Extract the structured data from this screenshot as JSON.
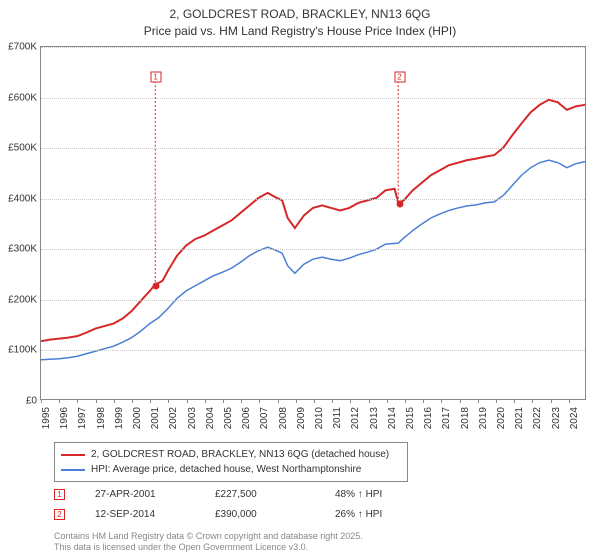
{
  "title": {
    "line1": "2, GOLDCREST ROAD, BRACKLEY, NN13 6QG",
    "line2": "Price paid vs. HM Land Registry's House Price Index (HPI)"
  },
  "chart": {
    "type": "line",
    "background_color": "#ffffff",
    "grid_color": "#cccccc",
    "axis_color": "#888888",
    "label_fontsize": 10,
    "ylim": [
      0,
      700000
    ],
    "ytick_step": 100000,
    "yticks": [
      "£0",
      "£100K",
      "£200K",
      "£300K",
      "£400K",
      "£500K",
      "£600K",
      "£700K"
    ],
    "xlim": [
      1995,
      2025
    ],
    "xticks": [
      1995,
      1996,
      1997,
      1998,
      1999,
      2000,
      2001,
      2002,
      2003,
      2004,
      2005,
      2006,
      2007,
      2008,
      2009,
      2010,
      2011,
      2012,
      2013,
      2014,
      2015,
      2016,
      2017,
      2018,
      2019,
      2020,
      2021,
      2022,
      2023,
      2024
    ],
    "series": [
      {
        "id": "price_paid",
        "color": "#d62728",
        "line_width": 2,
        "label": "2, GOLDCREST ROAD, BRACKLEY, NN13 6QG (detached house)",
        "points": [
          [
            1995,
            115000
          ],
          [
            1995.5,
            118000
          ],
          [
            1996,
            120000
          ],
          [
            1996.5,
            122000
          ],
          [
            1997,
            125000
          ],
          [
            1997.5,
            132000
          ],
          [
            1998,
            140000
          ],
          [
            1998.5,
            145000
          ],
          [
            1999,
            150000
          ],
          [
            1999.5,
            160000
          ],
          [
            2000,
            175000
          ],
          [
            2000.5,
            195000
          ],
          [
            2001,
            215000
          ],
          [
            2001.3,
            227500
          ],
          [
            2001.7,
            235000
          ],
          [
            2002,
            255000
          ],
          [
            2002.5,
            285000
          ],
          [
            2003,
            305000
          ],
          [
            2003.5,
            318000
          ],
          [
            2004,
            325000
          ],
          [
            2004.5,
            335000
          ],
          [
            2005,
            345000
          ],
          [
            2005.5,
            355000
          ],
          [
            2006,
            370000
          ],
          [
            2006.5,
            385000
          ],
          [
            2007,
            400000
          ],
          [
            2007.5,
            410000
          ],
          [
            2008,
            400000
          ],
          [
            2008.3,
            395000
          ],
          [
            2008.6,
            360000
          ],
          [
            2009,
            340000
          ],
          [
            2009.5,
            365000
          ],
          [
            2010,
            380000
          ],
          [
            2010.5,
            385000
          ],
          [
            2011,
            380000
          ],
          [
            2011.5,
            375000
          ],
          [
            2012,
            380000
          ],
          [
            2012.5,
            390000
          ],
          [
            2013,
            395000
          ],
          [
            2013.5,
            400000
          ],
          [
            2014,
            415000
          ],
          [
            2014.5,
            418000
          ],
          [
            2014.7,
            390000
          ],
          [
            2015,
            395000
          ],
          [
            2015.5,
            415000
          ],
          [
            2016,
            430000
          ],
          [
            2016.5,
            445000
          ],
          [
            2017,
            455000
          ],
          [
            2017.5,
            465000
          ],
          [
            2018,
            470000
          ],
          [
            2018.5,
            475000
          ],
          [
            2019,
            478000
          ],
          [
            2019.5,
            482000
          ],
          [
            2020,
            485000
          ],
          [
            2020.5,
            500000
          ],
          [
            2021,
            525000
          ],
          [
            2021.5,
            548000
          ],
          [
            2022,
            570000
          ],
          [
            2022.5,
            585000
          ],
          [
            2023,
            595000
          ],
          [
            2023.5,
            590000
          ],
          [
            2024,
            575000
          ],
          [
            2024.5,
            582000
          ],
          [
            2025,
            585000
          ]
        ]
      },
      {
        "id": "hpi",
        "color": "#4a7fd6",
        "line_width": 1.5,
        "label": "HPI: Average price, detached house, West Northamptonshire",
        "points": [
          [
            1995,
            78000
          ],
          [
            1995.5,
            79000
          ],
          [
            1996,
            80000
          ],
          [
            1996.5,
            82000
          ],
          [
            1997,
            85000
          ],
          [
            1997.5,
            90000
          ],
          [
            1998,
            95000
          ],
          [
            1998.5,
            100000
          ],
          [
            1999,
            105000
          ],
          [
            1999.5,
            113000
          ],
          [
            2000,
            122000
          ],
          [
            2000.5,
            135000
          ],
          [
            2001,
            150000
          ],
          [
            2001.5,
            162000
          ],
          [
            2002,
            180000
          ],
          [
            2002.5,
            200000
          ],
          [
            2003,
            215000
          ],
          [
            2003.5,
            225000
          ],
          [
            2004,
            235000
          ],
          [
            2004.5,
            245000
          ],
          [
            2005,
            252000
          ],
          [
            2005.5,
            260000
          ],
          [
            2006,
            272000
          ],
          [
            2006.5,
            285000
          ],
          [
            2007,
            295000
          ],
          [
            2007.5,
            302000
          ],
          [
            2008,
            295000
          ],
          [
            2008.3,
            290000
          ],
          [
            2008.6,
            265000
          ],
          [
            2009,
            250000
          ],
          [
            2009.5,
            268000
          ],
          [
            2010,
            278000
          ],
          [
            2010.5,
            282000
          ],
          [
            2011,
            278000
          ],
          [
            2011.5,
            275000
          ],
          [
            2012,
            280000
          ],
          [
            2012.5,
            287000
          ],
          [
            2013,
            292000
          ],
          [
            2013.5,
            298000
          ],
          [
            2014,
            308000
          ],
          [
            2014.7,
            310000
          ],
          [
            2015,
            320000
          ],
          [
            2015.5,
            335000
          ],
          [
            2016,
            348000
          ],
          [
            2016.5,
            360000
          ],
          [
            2017,
            368000
          ],
          [
            2017.5,
            375000
          ],
          [
            2018,
            380000
          ],
          [
            2018.5,
            384000
          ],
          [
            2019,
            386000
          ],
          [
            2019.5,
            390000
          ],
          [
            2020,
            392000
          ],
          [
            2020.5,
            405000
          ],
          [
            2021,
            425000
          ],
          [
            2021.5,
            445000
          ],
          [
            2022,
            460000
          ],
          [
            2022.5,
            470000
          ],
          [
            2023,
            475000
          ],
          [
            2023.5,
            470000
          ],
          [
            2024,
            460000
          ],
          [
            2024.5,
            468000
          ],
          [
            2025,
            472000
          ]
        ]
      }
    ],
    "markers": [
      {
        "id": 1,
        "label": "1",
        "x_box": 2001.3,
        "y_box": 640000,
        "x_dot": 2001.3,
        "y_dot": 227500
      },
      {
        "id": 2,
        "label": "2",
        "x_box": 2014.7,
        "y_box": 640000,
        "x_dot": 2014.7,
        "y_dot": 390000
      }
    ]
  },
  "legend": {
    "rows": [
      {
        "color": "#d62728",
        "label": "2, GOLDCREST ROAD, BRACKLEY, NN13 6QG (detached house)"
      },
      {
        "color": "#4a7fd6",
        "label": "HPI: Average price, detached house, West Northamptonshire"
      }
    ]
  },
  "footer": {
    "rows": [
      {
        "marker": "1",
        "date": "27-APR-2001",
        "price": "£227,500",
        "delta": "48% ↑ HPI"
      },
      {
        "marker": "2",
        "date": "12-SEP-2014",
        "price": "£390,000",
        "delta": "26% ↑ HPI"
      }
    ]
  },
  "attribution": {
    "line1": "Contains HM Land Registry data © Crown copyright and database right 2025.",
    "line2": "This data is licensed under the Open Government Licence v3.0."
  }
}
